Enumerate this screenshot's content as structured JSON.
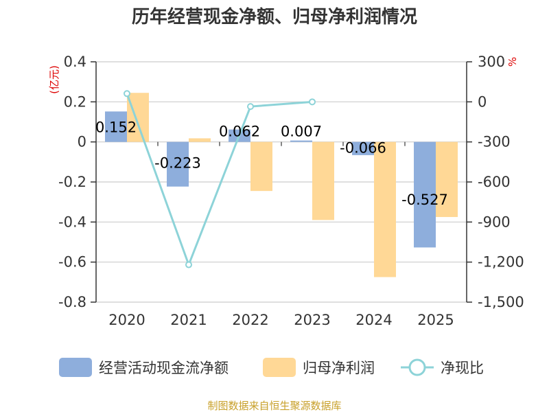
{
  "chart_data": {
    "type": "bar",
    "title": "历年经营现金净额、归母净利润情况",
    "categories": [
      "2020",
      "2021",
      "2022",
      "2023",
      "2024",
      "2025"
    ],
    "left_axis": {
      "unit": "(亿元)",
      "range": [
        -0.8,
        0.4
      ],
      "ticks": [
        0.4,
        0.2,
        0,
        -0.2,
        -0.4,
        -0.6,
        -0.8
      ],
      "tick_labels": [
        "0.4",
        "0.2",
        "0",
        "-0.2",
        "-0.4",
        "-0.6",
        "-0.8"
      ]
    },
    "right_axis": {
      "unit": "%",
      "range": [
        -1500,
        300
      ],
      "ticks": [
        300,
        0,
        -300,
        -600,
        -900,
        -1200,
        -1500
      ],
      "tick_labels": [
        "300",
        "0",
        "-300",
        "-600",
        "-900",
        "-1,200",
        "-1,500"
      ]
    },
    "series": [
      {
        "name": "经营活动现金流净额",
        "type": "bar",
        "axis": "left",
        "color": "#8eaedc",
        "values": [
          0.152,
          -0.223,
          0.062,
          0.007,
          -0.066,
          -0.527
        ],
        "labels": [
          "0.152",
          "-0.223",
          "0.062",
          "0.007",
          "-0.066",
          "-0.527"
        ]
      },
      {
        "name": "归母净利润",
        "type": "bar",
        "axis": "left",
        "color": "#ffd896",
        "values": [
          0.245,
          0.018,
          -0.245,
          -0.39,
          -0.675,
          -0.375
        ]
      },
      {
        "name": "净现比",
        "type": "line",
        "axis": "right",
        "color": "#8dd3d8",
        "values": [
          62,
          -1220,
          -35,
          0,
          null,
          null
        ]
      }
    ],
    "grid": true,
    "legend_position": "bottom"
  },
  "source_text": "制图数据来自恒生聚源数据库"
}
